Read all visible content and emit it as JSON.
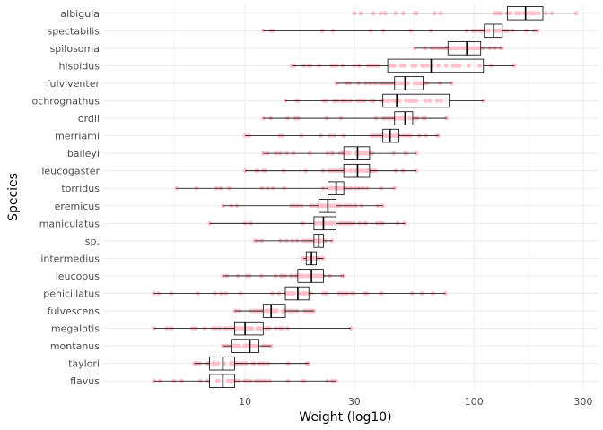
{
  "chart_data": {
    "type": "boxplot",
    "xlabel": "Weight (log10)",
    "ylabel": "Species",
    "x_scale": "log10",
    "xlim": [
      2.4,
      350
    ],
    "x_ticks": [
      10,
      30,
      100,
      300
    ],
    "x_tick_labels": [
      "10",
      "30",
      "100",
      "300"
    ],
    "grid": true,
    "point_color": "#ffc0cb",
    "box_color": "#000000",
    "categories": [
      "albigula",
      "spectabilis",
      "spilosoma",
      "hispidus",
      "fulviventer",
      "ochrognathus",
      "ordii",
      "merriami",
      "baileyi",
      "leucogaster",
      "torridus",
      "eremicus",
      "maniculatus",
      "sp.",
      "intermedius",
      "leucopus",
      "penicillatus",
      "fulvescens",
      "megalotis",
      "montanus",
      "taylori",
      "flavus"
    ],
    "boxes": [
      {
        "species": "albigula",
        "min": 30,
        "q1": 140,
        "median": 168,
        "q3": 200,
        "max": 280
      },
      {
        "species": "spectabilis",
        "min": 12,
        "q1": 111,
        "median": 122,
        "q3": 133,
        "max": 190
      },
      {
        "species": "spilosoma",
        "min": 55,
        "q1": 77,
        "median": 93,
        "q3": 107,
        "max": 133
      },
      {
        "species": "hispidus",
        "min": 16,
        "q1": 42,
        "median": 65,
        "q3": 110,
        "max": 150
      },
      {
        "species": "fulviventer",
        "min": 25,
        "q1": 45,
        "median": 50,
        "q3": 60,
        "max": 80
      },
      {
        "species": "ochrognathus",
        "min": 15,
        "q1": 40,
        "median": 46,
        "q3": 78,
        "max": 110
      },
      {
        "species": "ordii",
        "min": 12,
        "q1": 45,
        "median": 50,
        "q3": 54,
        "max": 76
      },
      {
        "species": "merriami",
        "min": 10,
        "q1": 40,
        "median": 43,
        "q3": 47,
        "max": 70
      },
      {
        "species": "baileyi",
        "min": 12,
        "q1": 27,
        "median": 31,
        "q3": 35,
        "max": 56
      },
      {
        "species": "leucogaster",
        "min": 10,
        "q1": 27,
        "median": 31,
        "q3": 35,
        "max": 56
      },
      {
        "species": "torridus",
        "min": 5,
        "q1": 23,
        "median": 25,
        "q3": 27,
        "max": 45
      },
      {
        "species": "eremicus",
        "min": 8,
        "q1": 21,
        "median": 23,
        "q3": 25,
        "max": 40
      },
      {
        "species": "maniculatus",
        "min": 7,
        "q1": 20,
        "median": 22,
        "q3": 25,
        "max": 50
      },
      {
        "species": "sp.",
        "min": 11,
        "q1": 20,
        "median": 21,
        "q3": 22,
        "max": 24
      },
      {
        "species": "intermedius",
        "min": 18,
        "q1": 18.5,
        "median": 19.5,
        "q3": 20.5,
        "max": 22
      },
      {
        "species": "leucopus",
        "min": 8,
        "q1": 17,
        "median": 19.5,
        "q3": 22,
        "max": 27
      },
      {
        "species": "penicillatus",
        "min": 4,
        "q1": 15,
        "median": 17,
        "q3": 19,
        "max": 75
      },
      {
        "species": "fulvescens",
        "min": 9,
        "q1": 12,
        "median": 13,
        "q3": 15,
        "max": 20
      },
      {
        "species": "megalotis",
        "min": 4,
        "q1": 9,
        "median": 10,
        "q3": 12,
        "max": 29
      },
      {
        "species": "montanus",
        "min": 8,
        "q1": 8.7,
        "median": 10.5,
        "q3": 11.5,
        "max": 13
      },
      {
        "species": "taylori",
        "min": 6,
        "q1": 7,
        "median": 8,
        "q3": 9,
        "max": 19
      },
      {
        "species": "flavus",
        "min": 4,
        "q1": 7,
        "median": 8,
        "q3": 9,
        "max": 25
      }
    ]
  }
}
